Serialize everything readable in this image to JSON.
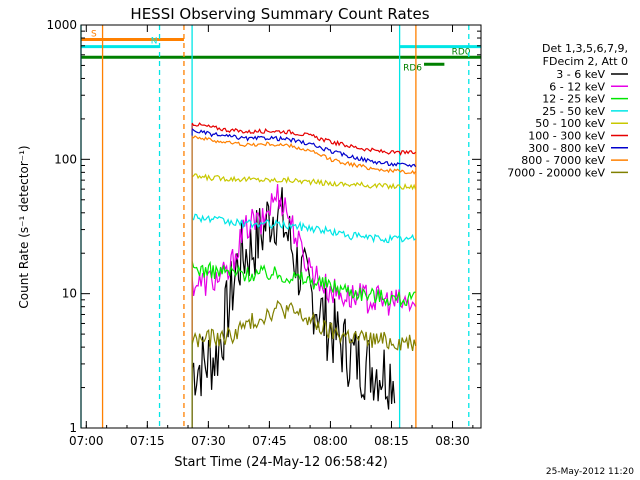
{
  "chart_data": {
    "type": "line",
    "title": "HESSI Observing Summary Count Rates",
    "xlabel": "Start Time (24-May-12 06:58:42)",
    "ylabel": "Count Rate (s⁻¹ detector⁻¹)",
    "y_scale": "log",
    "ylim": [
      1,
      1000
    ],
    "xlim": [
      "06:58:42",
      "08:37:00"
    ],
    "x_ticks": [
      "07:00",
      "07:15",
      "07:30",
      "07:45",
      "08:00",
      "08:15",
      "08:30"
    ],
    "y_ticks": [
      "1",
      "10",
      "100",
      "1000"
    ],
    "timestamp": "25-May-2012 11:20",
    "legend": {
      "placement": "right",
      "header": [
        "Det 1,3,5,6,7,9,",
        "FDecim 2, Att 0"
      ],
      "entries": [
        {
          "label": "3 - 6 keV",
          "color": "#000000"
        },
        {
          "label": "6 - 12 keV",
          "color": "#e600e6"
        },
        {
          "label": "12 - 25 keV",
          "color": "#00e600"
        },
        {
          "label": "25 - 50 keV",
          "color": "#00e6e6"
        },
        {
          "label": "50 - 100 keV",
          "color": "#c8c800"
        },
        {
          "label": "100 - 300 keV",
          "color": "#e60000"
        },
        {
          "label": "300 - 800 keV",
          "color": "#0000cc"
        },
        {
          "label": "800 - 7000 keV",
          "color": "#ff8000"
        },
        {
          "label": "7000 - 20000 keV",
          "color": "#808000"
        }
      ]
    },
    "flags": [
      {
        "label": "S",
        "color": "#ff8000",
        "start": "06:58:42",
        "end": "07:24",
        "level": 780,
        "label_end": "start"
      },
      {
        "label": "N",
        "color": "#00e6e6",
        "start": "06:58:42",
        "end": "07:18",
        "level": 690,
        "label_end": "end"
      },
      {
        "label": "",
        "color": "#00e6e6",
        "start": "08:17",
        "end": "08:37:00",
        "level": 690,
        "label_end": "end"
      },
      {
        "label": "",
        "color": "#008000",
        "start": "06:58:42",
        "end": "08:37:00",
        "level": 575,
        "label_end": "end"
      },
      {
        "label": "RD6",
        "color": "#008000",
        "start": "08:23",
        "end": "08:28",
        "level": 510,
        "label_end": "start"
      },
      {
        "label": "RD0",
        "color": "#008000",
        "start": "08:30",
        "end": "08:30",
        "level": 575,
        "label_end": "end"
      }
    ],
    "vlines": [
      {
        "time": "06:58:42",
        "color": "#00e6e6",
        "style": "solid"
      },
      {
        "time": "07:04",
        "color": "#ff8000",
        "style": "solid"
      },
      {
        "time": "07:18",
        "color": "#00e6e6",
        "style": "dashed"
      },
      {
        "time": "07:24",
        "color": "#ff8000",
        "style": "dashed"
      },
      {
        "time": "07:26",
        "color": "#00e6e6",
        "style": "solid"
      },
      {
        "time": "08:17",
        "color": "#00e6e6",
        "style": "solid"
      },
      {
        "time": "08:21",
        "color": "#ff8000",
        "style": "solid"
      },
      {
        "time": "08:34",
        "color": "#00e6e6",
        "style": "dashed"
      }
    ],
    "series": [
      {
        "name": "3 - 6 keV",
        "color": "#000000",
        "times": [
          "07:26",
          "07:29",
          "07:32",
          "07:35",
          "07:37",
          "07:39",
          "07:41",
          "07:43",
          "07:45",
          "07:47",
          "07:49",
          "07:51",
          "07:53",
          "07:55",
          "07:57",
          "07:59",
          "08:02",
          "08:05",
          "08:08",
          "08:11",
          "08:14",
          "08:16"
        ],
        "values": [
          2.8,
          3.0,
          3.5,
          8,
          16,
          20,
          22,
          28,
          38,
          42,
          30,
          20,
          13,
          10,
          8,
          6,
          4.5,
          3.5,
          3,
          2.8,
          2.6,
          2.5
        ]
      },
      {
        "name": "6 - 12 keV",
        "color": "#e600e6",
        "times": [
          "07:26",
          "07:29",
          "07:32",
          "07:35",
          "07:37",
          "07:39",
          "07:41",
          "07:43",
          "07:45",
          "07:47",
          "07:49",
          "07:51",
          "07:53",
          "07:55",
          "07:57",
          "07:59",
          "08:02",
          "08:05",
          "08:08",
          "08:11",
          "08:14",
          "08:17",
          "08:21"
        ],
        "values": [
          12,
          12,
          13,
          14,
          22,
          30,
          35,
          32,
          45,
          55,
          45,
          30,
          20,
          16,
          13,
          11,
          10,
          9.5,
          9.3,
          9,
          8.8,
          8.5,
          8.3
        ]
      },
      {
        "name": "12 - 25 keV",
        "color": "#00e600",
        "times": [
          "07:26",
          "07:30",
          "07:35",
          "07:40",
          "07:45",
          "07:50",
          "07:55",
          "08:00",
          "08:05",
          "08:10",
          "08:15",
          "08:21"
        ],
        "values": [
          15.5,
          14.8,
          14.5,
          14.0,
          14.2,
          13.5,
          12.5,
          11.5,
          10.5,
          9.8,
          9.3,
          9.0
        ]
      },
      {
        "name": "25 - 50 keV",
        "color": "#00e6e6",
        "times": [
          "07:26",
          "07:30",
          "07:35",
          "07:40",
          "07:45",
          "07:50",
          "07:55",
          "08:00",
          "08:05",
          "08:10",
          "08:15",
          "08:21"
        ],
        "values": [
          38,
          36,
          34,
          33,
          33,
          32,
          31,
          29,
          27,
          26,
          25.5,
          25.5
        ]
      },
      {
        "name": "50 - 100 keV",
        "color": "#c8c800",
        "times": [
          "07:26",
          "07:30",
          "07:35",
          "07:40",
          "07:45",
          "07:50",
          "07:55",
          "08:00",
          "08:05",
          "08:10",
          "08:15",
          "08:21"
        ],
        "values": [
          75,
          73,
          72,
          71,
          70,
          70,
          68,
          66,
          65,
          64,
          63,
          62
        ]
      },
      {
        "name": "100 - 300 keV",
        "color": "#e60000",
        "times": [
          "07:26",
          "07:30",
          "07:35",
          "07:40",
          "07:45",
          "07:50",
          "07:55",
          "08:00",
          "08:05",
          "08:10",
          "08:15",
          "08:21"
        ],
        "values": [
          185,
          175,
          165,
          160,
          163,
          160,
          150,
          135,
          125,
          117,
          112,
          112
        ]
      },
      {
        "name": "300 - 800 keV",
        "color": "#0000cc",
        "times": [
          "07:26",
          "07:30",
          "07:35",
          "07:40",
          "07:45",
          "07:50",
          "07:55",
          "08:00",
          "08:05",
          "08:10",
          "08:15",
          "08:21"
        ],
        "values": [
          165,
          155,
          148,
          142,
          145,
          140,
          130,
          115,
          105,
          97,
          92,
          90
        ]
      },
      {
        "name": "800 - 7000 keV",
        "color": "#ff8000",
        "times": [
          "07:26",
          "07:30",
          "07:35",
          "07:40",
          "07:45",
          "07:50",
          "07:55",
          "08:00",
          "08:05",
          "08:10",
          "08:15",
          "08:21"
        ],
        "values": [
          150,
          140,
          133,
          128,
          130,
          126,
          115,
          100,
          92,
          86,
          82,
          80
        ]
      },
      {
        "name": "7000 - 20000 keV",
        "color": "#808000",
        "times": [
          "07:26",
          "07:30",
          "07:35",
          "07:38",
          "07:41",
          "07:44",
          "07:47",
          "07:50",
          "07:53",
          "07:56",
          "07:59",
          "08:02",
          "08:05",
          "08:08",
          "08:11",
          "08:14",
          "08:17",
          "08:21"
        ],
        "values": [
          4.5,
          4.6,
          4.8,
          5.5,
          6.2,
          7.0,
          7.8,
          7.5,
          6.8,
          6.0,
          5.3,
          5.0,
          4.8,
          4.6,
          4.5,
          4.4,
          4.4,
          4.4
        ]
      }
    ]
  }
}
